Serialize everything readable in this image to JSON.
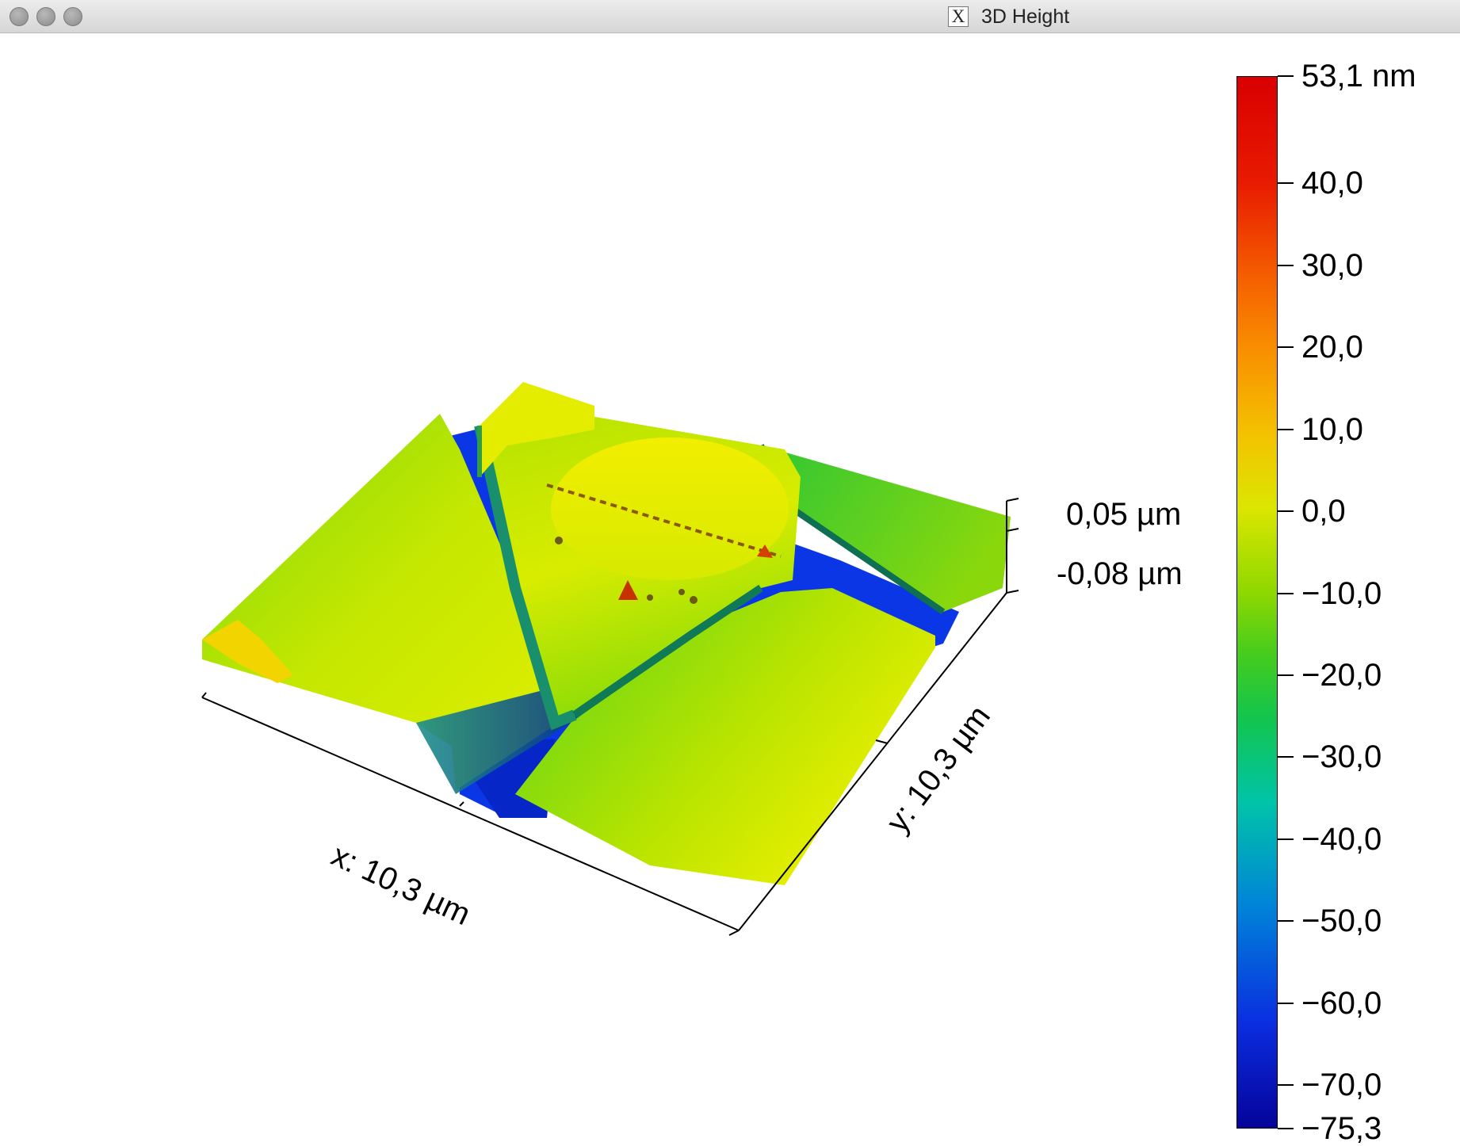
{
  "window": {
    "title": "3D Height",
    "title_icon": "x11-icon"
  },
  "window_controls": [
    "close-button",
    "minimize-button",
    "zoom-button"
  ],
  "view": {
    "x_axis_label": "x: 10,3 µm",
    "y_axis_label": "y: 10,3 µm",
    "z_axis_top": "0,05 µm",
    "z_axis_bottom": "-0,08 µm"
  },
  "colorbar": {
    "max": 53.1,
    "min": -75.3,
    "ticks": [
      {
        "value": 53.1,
        "label": "53,1 nm"
      },
      {
        "value": 40.0,
        "label": "40,0"
      },
      {
        "value": 30.0,
        "label": "30,0"
      },
      {
        "value": 20.0,
        "label": "20,0"
      },
      {
        "value": 10.0,
        "label": "10,0"
      },
      {
        "value": 0.0,
        "label": "0,0"
      },
      {
        "value": -10.0,
        "label": "−10,0"
      },
      {
        "value": -20.0,
        "label": "−20,0"
      },
      {
        "value": -30.0,
        "label": "−30,0"
      },
      {
        "value": -40.0,
        "label": "−40,0"
      },
      {
        "value": -50.0,
        "label": "−50,0"
      },
      {
        "value": -60.0,
        "label": "−60,0"
      },
      {
        "value": -70.0,
        "label": "−70,0"
      },
      {
        "value": -75.3,
        "label": "−75,3"
      }
    ]
  },
  "colors": {
    "surface_yellow": "#e4f000",
    "surface_green": "#4fd21a",
    "trench_blue": "#0a36e6",
    "peak_red": "#c83200"
  }
}
